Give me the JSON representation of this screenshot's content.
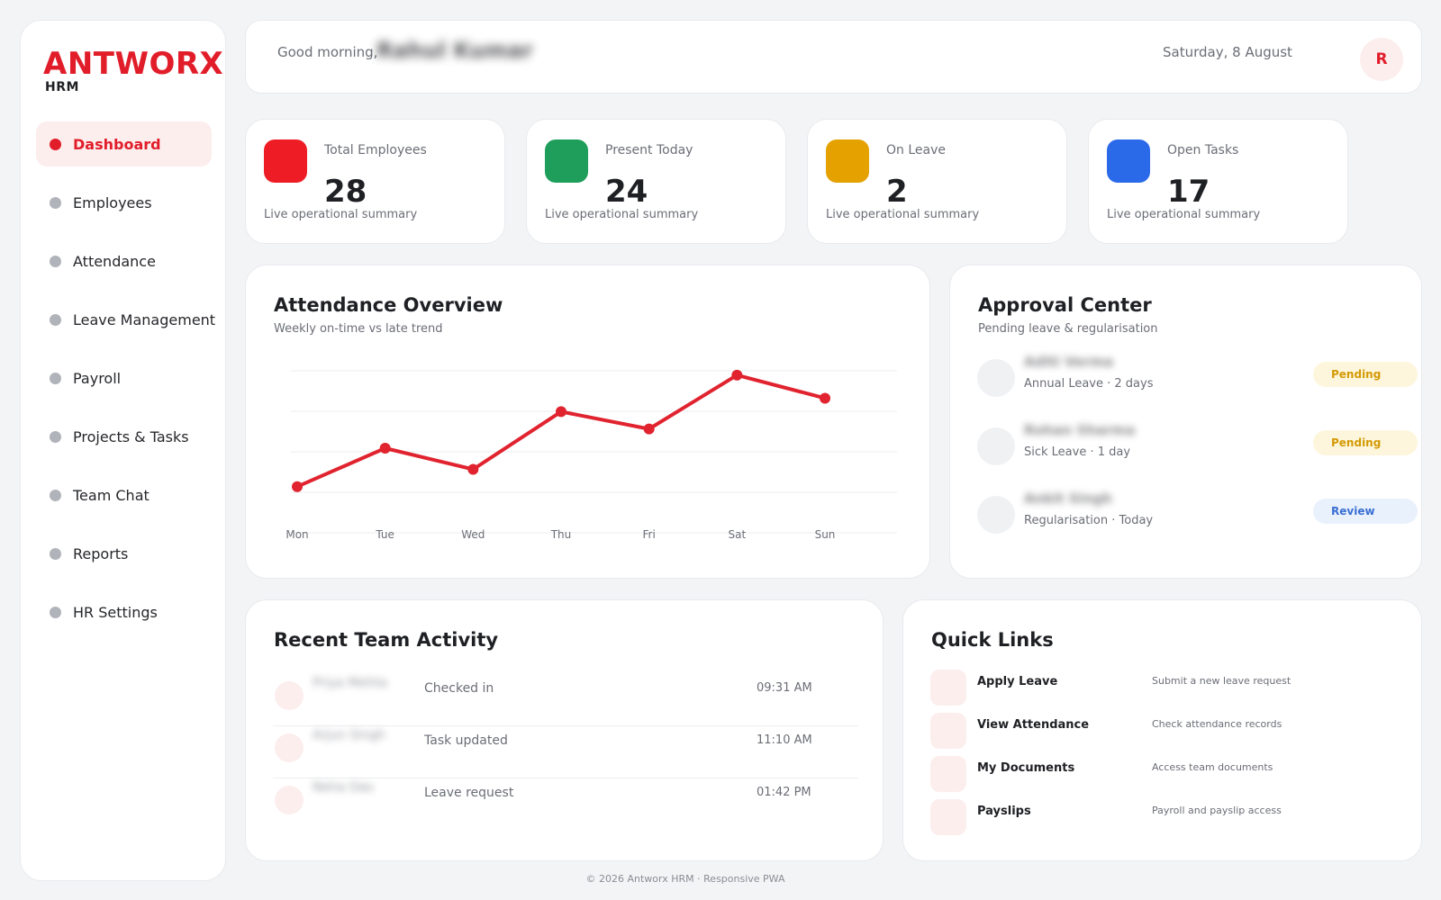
{
  "brand": {
    "name": "ANTWORX",
    "sub": "HRM",
    "accent": "#e11d2a"
  },
  "sidebar": {
    "items": [
      {
        "label": "Dashboard",
        "active": true
      },
      {
        "label": "Employees"
      },
      {
        "label": "Attendance"
      },
      {
        "label": "Leave Management"
      },
      {
        "label": "Payroll"
      },
      {
        "label": "Projects & Tasks"
      },
      {
        "label": "Team Chat"
      },
      {
        "label": "Reports"
      },
      {
        "label": "HR Settings"
      }
    ]
  },
  "header": {
    "greeting": "Good morning,",
    "user_name": "Rahul Kumar",
    "date": "Saturday, 8 August",
    "avatar_initial": "R"
  },
  "stats": [
    {
      "label": "Total Employees",
      "value": "28",
      "desc": "Live operational summary",
      "color": "#ee1c25"
    },
    {
      "label": "Present Today",
      "value": "24",
      "desc": "Live operational summary",
      "color": "#1e9e5a"
    },
    {
      "label": "On Leave",
      "value": "2",
      "desc": "Live operational summary",
      "color": "#e4a100"
    },
    {
      "label": "Open Tasks",
      "value": "17",
      "desc": "Live operational summary",
      "color": "#2a6ae9"
    }
  ],
  "attendance": {
    "title": "Attendance Overview",
    "subtitle": "Weekly on-time vs late trend"
  },
  "chart_data": {
    "type": "line",
    "categories": [
      "Mon",
      "Tue",
      "Wed",
      "Thu",
      "Fri",
      "Sat",
      "Sun"
    ],
    "series": [
      {
        "values": [
          12,
          22,
          16.5,
          31.5,
          27,
          41,
          35
        ],
        "color": "#e0232f"
      }
    ],
    "ylim": [
      0,
      44
    ],
    "grid": true,
    "xlabel": "",
    "ylabel": ""
  },
  "approval": {
    "title": "Approval Center",
    "subtitle": "Pending leave & regularisation",
    "items": [
      {
        "name": "Aditi Verma",
        "detail": "Annual Leave · 2 days",
        "status": "Pending"
      },
      {
        "name": "Rohan Sharma",
        "detail": "Sick Leave · 1 day",
        "status": "Pending"
      },
      {
        "name": "Ankit Singh",
        "detail": "Regularisation · Today",
        "status": "Review"
      }
    ]
  },
  "activity": {
    "title": "Recent Team Activity",
    "items": [
      {
        "name": "Priya Mehta",
        "action": "Checked in",
        "time": "09:31 AM"
      },
      {
        "name": "Arjun Singh",
        "action": "Task updated",
        "time": "11:10 AM"
      },
      {
        "name": "Neha Das",
        "action": "Leave request",
        "time": "01:42 PM"
      }
    ]
  },
  "quick_links": {
    "title": "Quick Links",
    "items": [
      {
        "title": "Apply Leave",
        "desc": "Submit a new leave request"
      },
      {
        "title": "View Attendance",
        "desc": "Check attendance records"
      },
      {
        "title": "My Documents",
        "desc": "Access team documents"
      },
      {
        "title": "Payslips",
        "desc": "Payroll and payslip access"
      }
    ]
  },
  "footer": "© 2026 Antworx HRM · Responsive PWA"
}
